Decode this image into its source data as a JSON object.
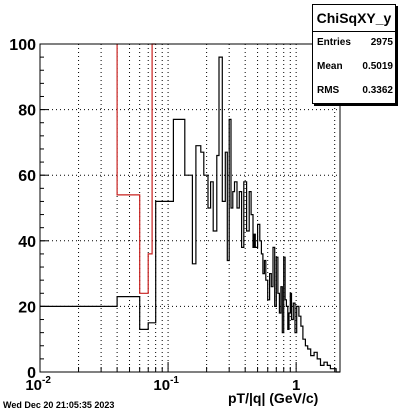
{
  "chart_data": {
    "type": "histogram",
    "xlabel": "pT/|q| (GeV/c)",
    "ylabel": "",
    "xscale": "log",
    "xlim": [
      0.01,
      2.2
    ],
    "ylim": [
      0,
      100
    ],
    "yticks": [
      0,
      20,
      40,
      60,
      80,
      100
    ],
    "ytick_labels": [
      "0",
      "20",
      "40",
      "60",
      "80",
      "100"
    ],
    "xticks": [
      0.01,
      0.1,
      1
    ],
    "xtick_labels": [
      {
        "base": "10",
        "exp": "-2"
      },
      {
        "base": "10",
        "exp": "-1"
      },
      {
        "base": "1",
        "exp": ""
      }
    ],
    "grid": true,
    "series": [
      {
        "color": "#000000",
        "steps": [
          [
            0.01,
            0.04,
            20
          ],
          [
            0.04,
            0.06,
            23
          ],
          [
            0.06,
            0.07,
            13
          ],
          [
            0.07,
            0.08,
            15
          ],
          [
            0.08,
            0.11,
            52
          ],
          [
            0.11,
            0.135,
            77
          ],
          [
            0.135,
            0.155,
            60
          ],
          [
            0.155,
            0.165,
            33
          ],
          [
            0.165,
            0.18,
            69
          ],
          [
            0.18,
            0.19,
            67
          ],
          [
            0.19,
            0.205,
            60
          ],
          [
            0.205,
            0.215,
            50
          ],
          [
            0.215,
            0.225,
            58
          ],
          [
            0.225,
            0.24,
            43
          ],
          [
            0.24,
            0.25,
            66
          ],
          [
            0.25,
            0.265,
            96
          ],
          [
            0.265,
            0.28,
            52
          ],
          [
            0.28,
            0.29,
            67
          ],
          [
            0.29,
            0.3,
            34
          ],
          [
            0.3,
            0.31,
            77
          ],
          [
            0.31,
            0.32,
            50
          ],
          [
            0.32,
            0.33,
            55
          ],
          [
            0.33,
            0.345,
            58
          ],
          [
            0.345,
            0.36,
            50
          ],
          [
            0.36,
            0.375,
            55
          ],
          [
            0.375,
            0.39,
            38
          ],
          [
            0.39,
            0.41,
            58
          ],
          [
            0.41,
            0.43,
            43
          ],
          [
            0.43,
            0.445,
            55
          ],
          [
            0.445,
            0.46,
            48
          ],
          [
            0.46,
            0.47,
            38
          ],
          [
            0.47,
            0.48,
            42
          ],
          [
            0.48,
            0.5,
            38
          ],
          [
            0.5,
            0.52,
            45
          ],
          [
            0.52,
            0.535,
            40
          ],
          [
            0.535,
            0.55,
            36
          ],
          [
            0.55,
            0.565,
            30
          ],
          [
            0.565,
            0.58,
            34
          ],
          [
            0.58,
            0.6,
            28
          ],
          [
            0.6,
            0.62,
            22
          ],
          [
            0.62,
            0.64,
            30
          ],
          [
            0.64,
            0.66,
            26
          ],
          [
            0.66,
            0.68,
            38
          ],
          [
            0.68,
            0.7,
            20
          ],
          [
            0.7,
            0.72,
            35
          ],
          [
            0.72,
            0.74,
            24
          ],
          [
            0.74,
            0.76,
            18
          ],
          [
            0.76,
            0.78,
            26
          ],
          [
            0.78,
            0.8,
            12
          ],
          [
            0.8,
            0.82,
            35
          ],
          [
            0.82,
            0.84,
            22
          ],
          [
            0.84,
            0.86,
            20
          ],
          [
            0.86,
            0.88,
            13
          ],
          [
            0.88,
            0.9,
            18
          ],
          [
            0.9,
            0.92,
            24
          ],
          [
            0.92,
            0.95,
            16
          ],
          [
            0.95,
            0.98,
            21
          ],
          [
            0.98,
            1.01,
            12
          ],
          [
            1.01,
            1.05,
            20
          ],
          [
            1.05,
            1.09,
            17
          ],
          [
            1.09,
            1.13,
            14
          ],
          [
            1.13,
            1.18,
            10
          ],
          [
            1.18,
            1.23,
            8
          ],
          [
            1.23,
            1.3,
            7
          ],
          [
            1.3,
            1.38,
            5
          ],
          [
            1.38,
            1.46,
            6
          ],
          [
            1.46,
            1.55,
            4
          ],
          [
            1.55,
            1.65,
            2
          ],
          [
            1.65,
            1.75,
            3
          ],
          [
            1.75,
            1.85,
            2
          ],
          [
            1.85,
            1.95,
            1
          ],
          [
            1.95,
            2.05,
            1
          ],
          [
            2.05,
            2.2,
            0
          ]
        ]
      },
      {
        "color": "#c8201e",
        "steps": [
          [
            0.04,
            0.06,
            54
          ],
          [
            0.06,
            0.07,
            24
          ],
          [
            0.07,
            0.075,
            36
          ],
          [
            0.075,
            0.08,
            100
          ]
        ],
        "left_edge_top": 100
      }
    ]
  },
  "stats_box": {
    "title": "ChiSqXY_y",
    "rows": [
      {
        "label": "Entries",
        "value": "2975"
      },
      {
        "label": "Mean",
        "value": "0.5019"
      },
      {
        "label": "RMS",
        "value": "0.3362"
      }
    ]
  },
  "footer": {
    "timestamp": "Wed Dec 20 21:05:35 2023"
  }
}
